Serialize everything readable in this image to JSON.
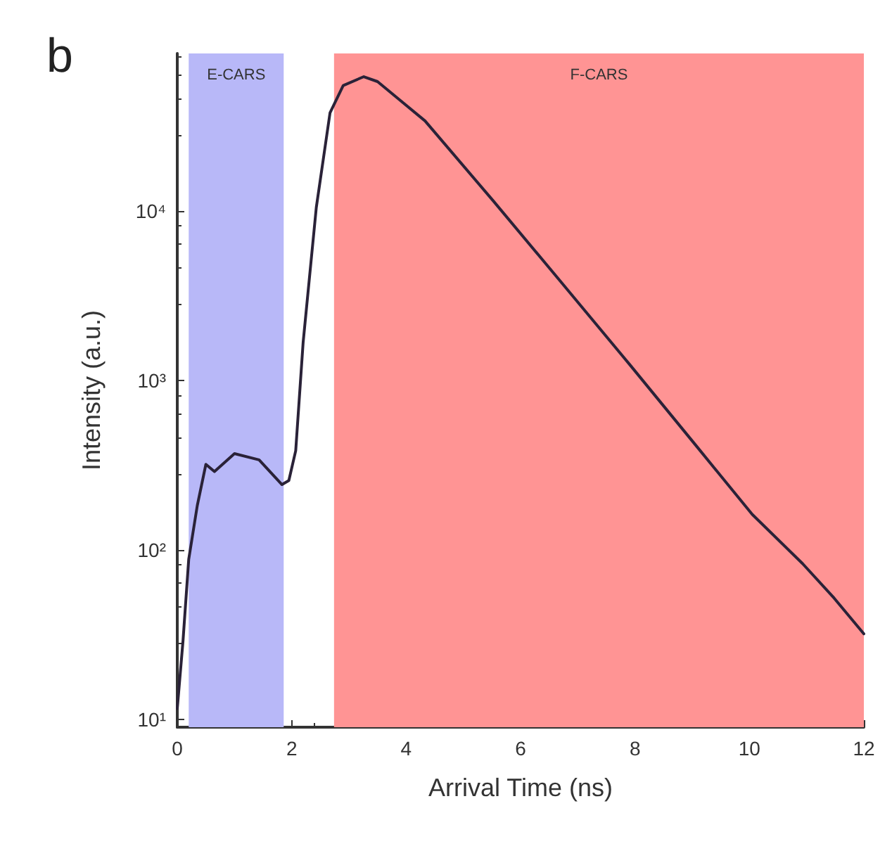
{
  "chart_data": {
    "type": "line",
    "title": "b",
    "xlabel": "Arrival Time (ns)",
    "ylabel": "Intensity (a.u.)",
    "x": [
      0,
      0.1,
      0.2,
      0.35,
      0.5,
      0.65,
      1.0,
      1.43,
      1.83,
      1.95,
      2.07,
      2.2,
      2.43,
      2.67,
      2.9,
      3.26,
      3.5,
      3.86,
      4.33,
      5.52,
      6.71,
      7.9,
      9.1,
      10.05,
      10.93,
      11.48,
      12
    ],
    "series": [
      {
        "color": "#2a2238",
        "values": [
          11.6,
          29,
          88,
          183,
          320,
          290,
          370,
          340,
          243,
          257,
          385,
          1680,
          10500,
          38000,
          55000,
          62000,
          58000,
          46000,
          34000,
          11500,
          3800,
          1250,
          400,
          162,
          83,
          52,
          32
        ]
      }
    ],
    "log": "y",
    "xlim": [
      0,
      12
    ],
    "xticks": [
      0,
      2,
      4,
      6,
      8,
      10,
      12
    ],
    "ylim": [
      9,
      85000
    ],
    "yticks": [
      {
        "value": 10,
        "label": "10¹"
      },
      {
        "value": 100,
        "label": "10²"
      },
      {
        "value": 1000,
        "label": "10³"
      },
      {
        "value": 10000,
        "label": "10⁴"
      }
    ],
    "bands": [
      {
        "axis": "x",
        "from": 0.2,
        "to": 1.86,
        "label": "E-CARS",
        "color": "#b8b8f8"
      },
      {
        "axis": "x",
        "from": 2.74,
        "to": 12,
        "label": "F-CARS",
        "color": "#ff9494"
      }
    ],
    "grid": false,
    "marker": "none",
    "line_style": "solid"
  }
}
